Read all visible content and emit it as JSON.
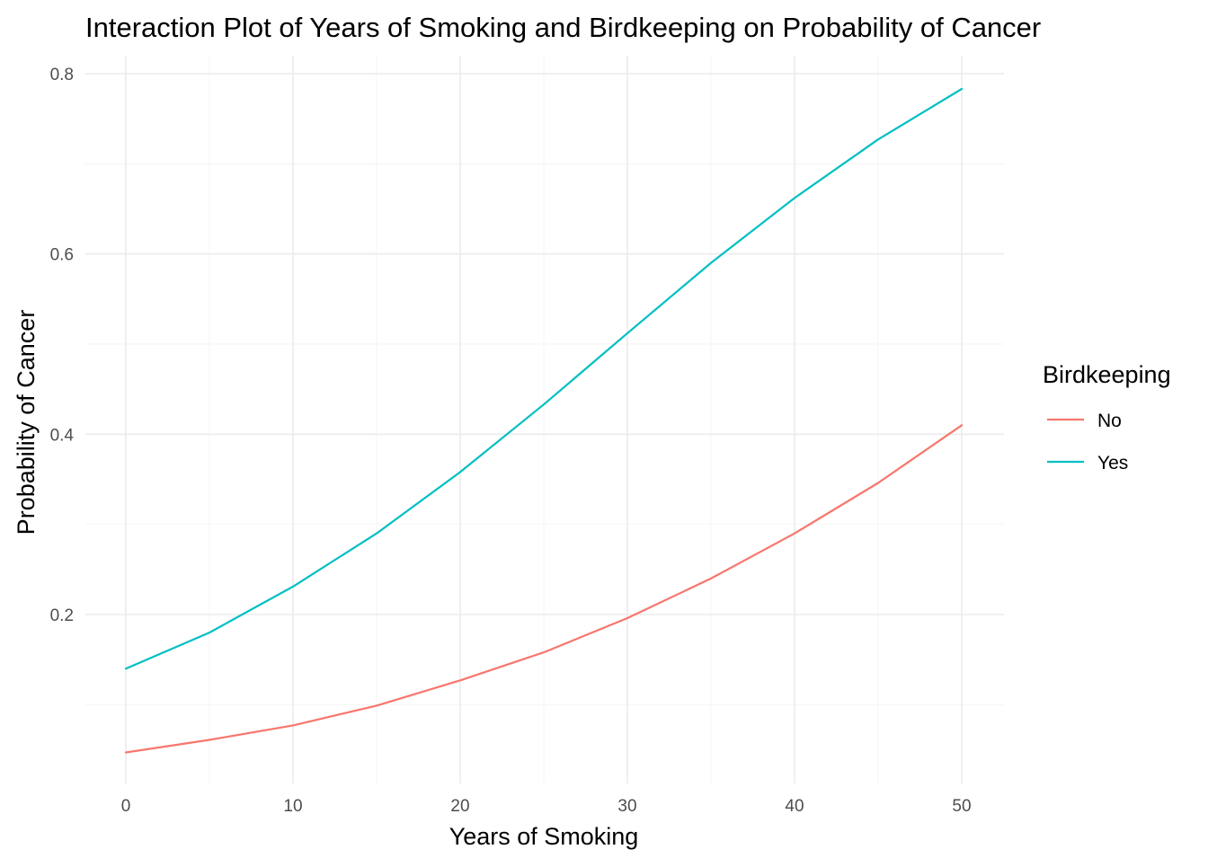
{
  "chart_data": {
    "type": "line",
    "title": "Interaction Plot of Years of Smoking and Birdkeeping on Probability of Cancer",
    "xlabel": "Years of Smoking",
    "ylabel": "Probability of Cancer",
    "xlim": [
      0,
      50
    ],
    "ylim": [
      0.03,
      0.81
    ],
    "x_ticks": [
      0,
      10,
      20,
      30,
      40,
      50
    ],
    "x_tick_labels": [
      "0",
      "10",
      "20",
      "30",
      "40",
      "50"
    ],
    "y_ticks": [
      0.2,
      0.4,
      0.6,
      0.8
    ],
    "y_tick_labels": [
      "0.2",
      "0.4",
      "0.6",
      "0.8"
    ],
    "grid": true,
    "legend": {
      "title": "Birdkeeping",
      "position": "right"
    },
    "x": [
      0,
      5,
      10,
      15,
      20,
      25,
      30,
      35,
      40,
      45,
      50
    ],
    "series": [
      {
        "name": "No",
        "color": "#F8766D",
        "values": [
          0.047,
          0.061,
          0.077,
          0.099,
          0.127,
          0.158,
          0.196,
          0.24,
          0.29,
          0.346,
          0.41
        ]
      },
      {
        "name": "Yes",
        "color": "#00BFC4",
        "values": [
          0.14,
          0.18,
          0.231,
          0.29,
          0.358,
          0.433,
          0.512,
          0.59,
          0.662,
          0.727,
          0.783
        ]
      }
    ]
  }
}
